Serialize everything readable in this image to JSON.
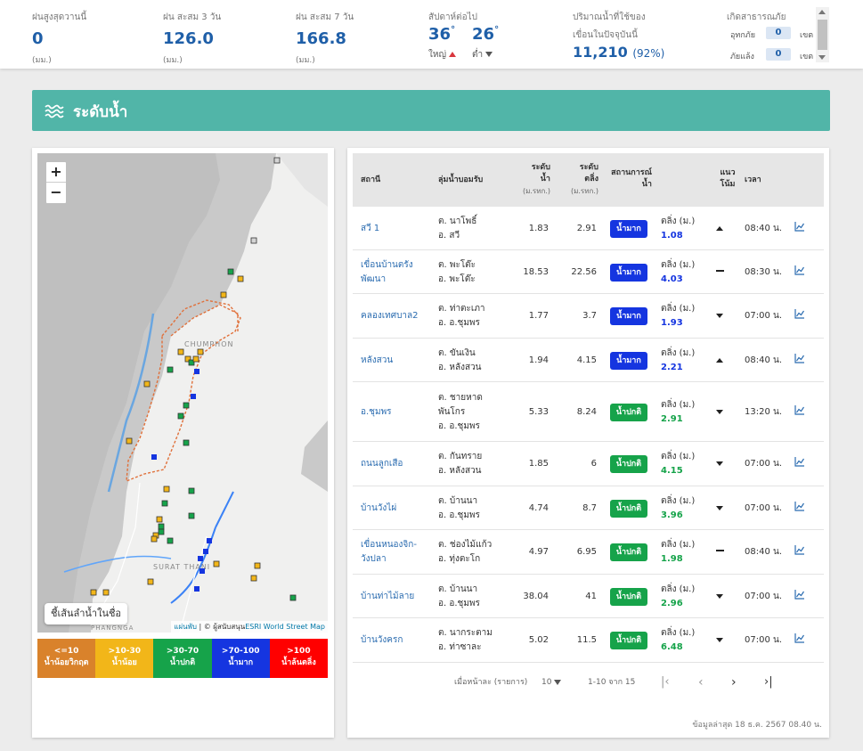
{
  "stats": [
    {
      "label": "ฝนสูงสุดวานนี้",
      "value": "0",
      "unit": "(มม.)"
    },
    {
      "label": "ฝน สะสม 3 วัน",
      "value": "126.0",
      "unit": "(มม.)"
    },
    {
      "label": "ฝน สะสม 7 วัน",
      "value": "166.8",
      "unit": "(มม.)"
    }
  ],
  "temperature": {
    "label": "สัปดาห์ต่อไป",
    "high": "36",
    "low": "26",
    "deg": "°",
    "high_label": "ใหญ่",
    "low_label": "ต่ำ"
  },
  "dam": {
    "label_line1": "ปริมาณน้ำที่ใช้ของ",
    "label_line2": "เขื่อนในปัจจุบันนี้",
    "value": "11,210",
    "percent": "(92%)"
  },
  "disaster": {
    "label": "เกิดสาธารณภัย",
    "flood_label": "อุทกภัย",
    "flood_count": "0",
    "drought_label": "ภัยแล้ง",
    "drought_count": "0",
    "unit": "เขต"
  },
  "banner": {
    "title": "ระดับน้ำ"
  },
  "map": {
    "zoom_in": "+",
    "zoom_out": "−",
    "river_button": "ชี้เส้นลำน้ำในชื่อ",
    "attribution_prefix": "แผ่นพับ",
    "attribution_mid": " | © ผู้สนับสนุน",
    "attribution_link": "ESRI World Street Map",
    "province_label": "CHUMPHON",
    "region_label": "SURAT THANI",
    "south_label": "PHANGNGA"
  },
  "legend": [
    {
      "line1": "<=10",
      "line2": "น้ำน้อยวิกฤต",
      "color": "#d9822b"
    },
    {
      "line1": ">10-30",
      "line2": "น้ำน้อย",
      "color": "#f2b619"
    },
    {
      "line1": ">30-70",
      "line2": "น้ำปกติ",
      "color": "#16a34a"
    },
    {
      "line1": ">70-100",
      "line2": "น้ำมาก",
      "color": "#1535e0"
    },
    {
      "line1": ">100",
      "line2": "น้ำล้นตลิ่ง",
      "color": "#ff0000"
    }
  ],
  "table": {
    "headers": {
      "station": "สถานี",
      "location": "ลุ่มน้ำบอมรับ",
      "water_level": "ระดับ",
      "water_level_2": "น้ำ",
      "water_level_unit": "(ม.รทก.)",
      "bank": "ระดับ",
      "bank_2": "ตลิ่ง",
      "bank_unit": "(ม.รทก.)",
      "status": "สถานการณ์",
      "status_2": "น้ำ",
      "trend": "แนว",
      "trend_2": "โน้ม",
      "time": "เวลา"
    },
    "rows": [
      {
        "station": "สวี 1",
        "loc1": "ต. นาโพธิ์",
        "loc2": "อ. สวี",
        "level": "1.83",
        "bank": "2.91",
        "status": "น้ำมาก",
        "status_color": "#1535e0",
        "bank_label": "ตลิ่ง (ม.)",
        "bank_val": "1.08",
        "bank_val_color": "#1535e0",
        "trend": "up",
        "time": "08:40 น."
      },
      {
        "station": "เขื่อนบ้านตรัง",
        "station2": "พัฒนา",
        "loc1": "ต. พะโต๊ะ",
        "loc2": "อ. พะโต๊ะ",
        "level": "18.53",
        "bank": "22.56",
        "status": "น้ำมาก",
        "status_color": "#1535e0",
        "bank_label": "ตลิ่ง (ม.)",
        "bank_val": "4.03",
        "bank_val_color": "#1535e0",
        "trend": "flat",
        "time": "08:30 น."
      },
      {
        "station": "คลองเทศบาล2",
        "loc1": "ต. ท่าตะเภา",
        "loc2": "อ. อ.ชุมพร",
        "level": "1.77",
        "bank": "3.7",
        "status": "น้ำมาก",
        "status_color": "#1535e0",
        "bank_label": "ตลิ่ง (ม.)",
        "bank_val": "1.93",
        "bank_val_color": "#1535e0",
        "trend": "down",
        "time": "07:00 น."
      },
      {
        "station": "หลังสวน",
        "loc1": "ต. ขันเงิน",
        "loc2": "อ. หลังสวน",
        "level": "1.94",
        "bank": "4.15",
        "status": "น้ำมาก",
        "status_color": "#1535e0",
        "bank_label": "ตลิ่ง (ม.)",
        "bank_val": "2.21",
        "bank_val_color": "#1535e0",
        "trend": "up",
        "time": "08:40 น."
      },
      {
        "station": "อ.ชุมพร",
        "loc1": "ต. ชายหาด",
        "loc1b": "พันโกร",
        "loc2": "อ. อ.ชุมพร",
        "level": "5.33",
        "bank": "8.24",
        "status": "น้ำปกติ",
        "status_color": "#16a34a",
        "bank_label": "ตลิ่ง (ม.)",
        "bank_val": "2.91",
        "bank_val_color": "#16a34a",
        "trend": "down",
        "time": "13:20 น."
      },
      {
        "station": "ถนนลูกเสือ",
        "loc1": "ต. กันทราย",
        "loc2": "อ. หลังสวน",
        "level": "1.85",
        "bank": "6",
        "status": "น้ำปกติ",
        "status_color": "#16a34a",
        "bank_label": "ตลิ่ง (ม.)",
        "bank_val": "4.15",
        "bank_val_color": "#16a34a",
        "trend": "down",
        "time": "07:00 น."
      },
      {
        "station": "บ้านวังไผ่",
        "loc1": "ต. บ้านนา",
        "loc2": "อ. อ.ชุมพร",
        "level": "4.74",
        "bank": "8.7",
        "status": "น้ำปกติ",
        "status_color": "#16a34a",
        "bank_label": "ตลิ่ง (ม.)",
        "bank_val": "3.96",
        "bank_val_color": "#16a34a",
        "trend": "down",
        "time": "07:00 น."
      },
      {
        "station": "เขื่อนหนองจิก-",
        "station2": "วังปลา",
        "loc1": "ต. ช่องไม้แก้ว",
        "loc2": "อ. ทุ่งตะโก",
        "level": "4.97",
        "bank": "6.95",
        "status": "น้ำปกติ",
        "status_color": "#16a34a",
        "bank_label": "ตลิ่ง (ม.)",
        "bank_val": "1.98",
        "bank_val_color": "#16a34a",
        "trend": "flat",
        "time": "08:40 น."
      },
      {
        "station": "บ้านท่าไม้ลาย",
        "loc1": "ต. บ้านนา",
        "loc2": "อ. อ.ชุมพร",
        "level": "38.04",
        "bank": "41",
        "status": "น้ำปกติ",
        "status_color": "#16a34a",
        "bank_label": "ตลิ่ง (ม.)",
        "bank_val": "2.96",
        "bank_val_color": "#16a34a",
        "trend": "down",
        "time": "07:00 น."
      },
      {
        "station": "บ้านวังครก",
        "loc1": "ต. นากระตาม",
        "loc2": "อ. ท่าซาละ",
        "level": "5.02",
        "bank": "11.5",
        "status": "น้ำปกติ",
        "status_color": "#16a34a",
        "bank_label": "ตลิ่ง (ม.)",
        "bank_val": "6.48",
        "bank_val_color": "#16a34a",
        "trend": "down",
        "time": "07:00 น."
      }
    ]
  },
  "pager": {
    "rows_label": "เมื่อหน้าละ (รายการ)",
    "rows_value": "10",
    "range": "1-10 จาก 15"
  },
  "footnote": "ข้อมูลล่าสุด 18 ธ.ค. 2567 08.40 น."
}
